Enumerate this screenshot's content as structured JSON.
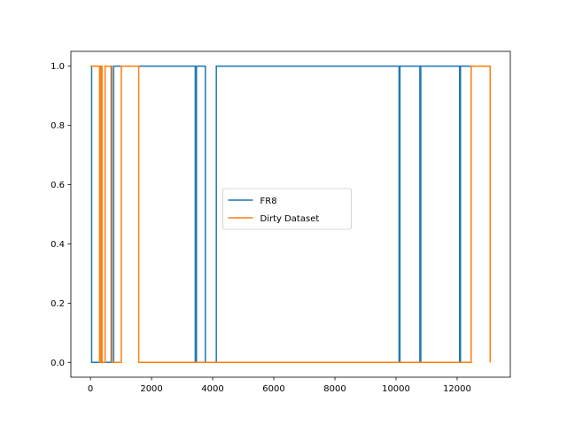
{
  "chart_data": {
    "type": "line",
    "title": "",
    "xlabel": "",
    "ylabel": "",
    "xlim": [
      -640,
      13740
    ],
    "ylim": [
      -0.05,
      1.05
    ],
    "xticks": [
      0,
      2000,
      4000,
      6000,
      8000,
      10000,
      12000
    ],
    "yticks": [
      0.0,
      0.2,
      0.4,
      0.6,
      0.8,
      1.0
    ],
    "xtick_labels": [
      "0",
      "2000",
      "4000",
      "6000",
      "8000",
      "10000",
      "12000"
    ],
    "ytick_labels": [
      "0.0",
      "0.2",
      "0.4",
      "0.6",
      "0.8",
      "1.0"
    ],
    "grid": false,
    "legend_position": "center",
    "series": [
      {
        "name": "FR8",
        "color": "#1f77b4",
        "step": true,
        "points": [
          [
            0,
            1
          ],
          [
            40,
            1
          ],
          [
            40,
            0
          ],
          [
            680,
            0
          ],
          [
            680,
            1
          ],
          [
            700,
            1
          ],
          [
            700,
            0
          ],
          [
            760,
            0
          ],
          [
            760,
            1
          ],
          [
            3430,
            1
          ],
          [
            3430,
            0
          ],
          [
            3470,
            0
          ],
          [
            3470,
            1
          ],
          [
            3760,
            1
          ],
          [
            3760,
            0
          ],
          [
            4120,
            0
          ],
          [
            4120,
            1
          ],
          [
            10100,
            1
          ],
          [
            10100,
            0
          ],
          [
            10130,
            0
          ],
          [
            10130,
            1
          ],
          [
            10780,
            1
          ],
          [
            10780,
            0
          ],
          [
            10810,
            0
          ],
          [
            10810,
            1
          ],
          [
            12080,
            1
          ],
          [
            12080,
            0
          ],
          [
            12110,
            0
          ],
          [
            12110,
            1
          ],
          [
            13080,
            1
          ]
        ]
      },
      {
        "name": "Dirty Dataset",
        "color": "#ff7f0e",
        "step": true,
        "points": [
          [
            0,
            1
          ],
          [
            300,
            1
          ],
          [
            300,
            0
          ],
          [
            340,
            0
          ],
          [
            340,
            1
          ],
          [
            380,
            1
          ],
          [
            380,
            0
          ],
          [
            480,
            0
          ],
          [
            480,
            1
          ],
          [
            700,
            1
          ],
          [
            700,
            0
          ],
          [
            1010,
            0
          ],
          [
            1010,
            1
          ],
          [
            1580,
            1
          ],
          [
            1580,
            0
          ],
          [
            12460,
            0
          ],
          [
            12460,
            1
          ],
          [
            13080,
            1
          ],
          [
            13080,
            0
          ]
        ]
      }
    ]
  }
}
